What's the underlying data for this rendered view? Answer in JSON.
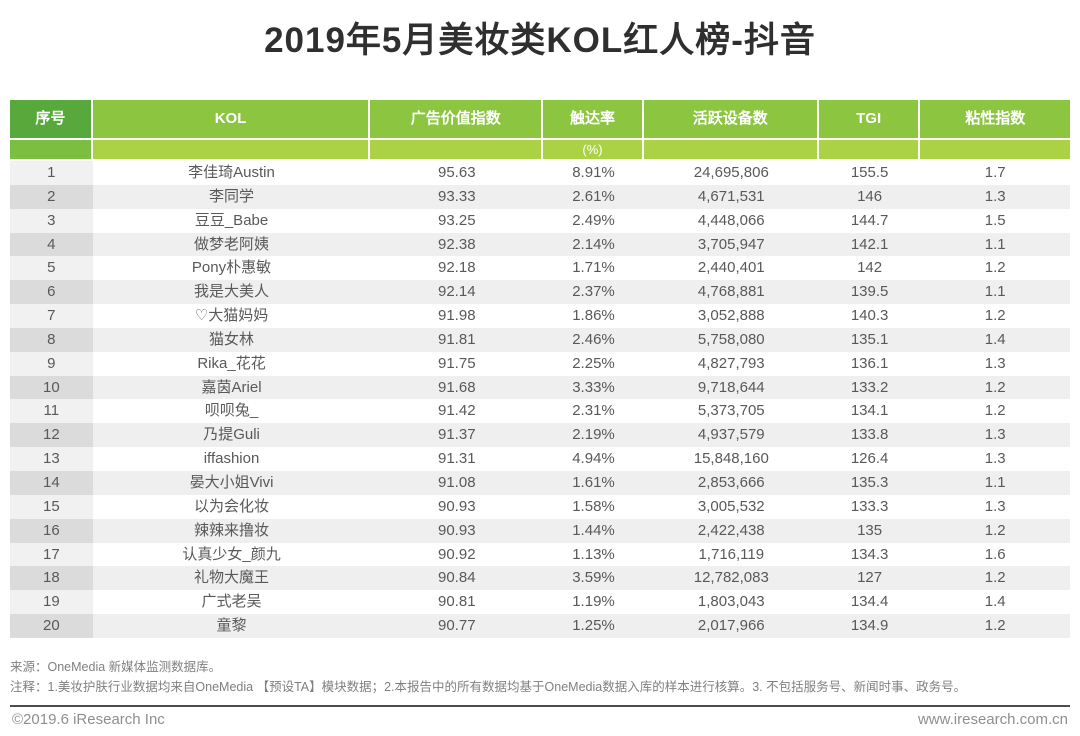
{
  "title": "2019年5月美妆类KOL红人榜-抖音",
  "colors": {
    "header_green_dark": "#57a93b",
    "header_green": "#8cc640",
    "subheader_green": "#abd144",
    "subheader_green_rank": "#7cbf40",
    "title_color": "#2f2f2f",
    "body_text": "#595959"
  },
  "chart_data": {
    "type": "table",
    "title": "2019年5月美妆类KOL红人榜-抖音",
    "columns": [
      {
        "key": "rank",
        "label": "序号",
        "unit": ""
      },
      {
        "key": "kol",
        "label": "KOL",
        "unit": ""
      },
      {
        "key": "ad-value-index",
        "label": "广告价值指数",
        "unit": ""
      },
      {
        "key": "reach-rate",
        "label": "触达率",
        "unit": "(%)"
      },
      {
        "key": "active-devices",
        "label": "活跃设备数",
        "unit": ""
      },
      {
        "key": "tgi",
        "label": "TGI",
        "unit": ""
      },
      {
        "key": "stickiness-index",
        "label": "粘性指数",
        "unit": ""
      }
    ],
    "rows": [
      [
        "1",
        "李佳琦Austin",
        "95.63",
        "8.91%",
        "24,695,806",
        "155.5",
        "1.7"
      ],
      [
        "2",
        "李同学",
        "93.33",
        "2.61%",
        "4,671,531",
        "146",
        "1.3"
      ],
      [
        "3",
        "豆豆_Babe",
        "93.25",
        "2.49%",
        "4,448,066",
        "144.7",
        "1.5"
      ],
      [
        "4",
        "做梦老阿姨",
        "92.38",
        "2.14%",
        "3,705,947",
        "142.1",
        "1.1"
      ],
      [
        "5",
        "Pony朴惠敏",
        "92.18",
        "1.71%",
        "2,440,401",
        "142",
        "1.2"
      ],
      [
        "6",
        "我是大美人",
        "92.14",
        "2.37%",
        "4,768,881",
        "139.5",
        "1.1"
      ],
      [
        "7",
        "♡大猫妈妈",
        "91.98",
        "1.86%",
        "3,052,888",
        "140.3",
        "1.2"
      ],
      [
        "8",
        "猫女林",
        "91.81",
        "2.46%",
        "5,758,080",
        "135.1",
        "1.4"
      ],
      [
        "9",
        "Rika_花花",
        "91.75",
        "2.25%",
        "4,827,793",
        "136.1",
        "1.3"
      ],
      [
        "10",
        "嘉茵Ariel",
        "91.68",
        "3.33%",
        "9,718,644",
        "133.2",
        "1.2"
      ],
      [
        "11",
        "呗呗兔_",
        "91.42",
        "2.31%",
        "5,373,705",
        "134.1",
        "1.2"
      ],
      [
        "12",
        "乃提Guli",
        "91.37",
        "2.19%",
        "4,937,579",
        "133.8",
        "1.3"
      ],
      [
        "13",
        "iffashion",
        "91.31",
        "4.94%",
        "15,848,160",
        "126.4",
        "1.3"
      ],
      [
        "14",
        "晏大小姐Vivi",
        "91.08",
        "1.61%",
        "2,853,666",
        "135.3",
        "1.1"
      ],
      [
        "15",
        "以为会化妆",
        "90.93",
        "1.58%",
        "3,005,532",
        "133.3",
        "1.3"
      ],
      [
        "16",
        "辣辣来撸妆",
        "90.93",
        "1.44%",
        "2,422,438",
        "135",
        "1.2"
      ],
      [
        "17",
        "认真少女_颜九",
        "90.92",
        "1.13%",
        "1,716,119",
        "134.3",
        "1.6"
      ],
      [
        "18",
        "礼物大魔王",
        "90.84",
        "3.59%",
        "12,782,083",
        "127",
        "1.2"
      ],
      [
        "19",
        "广式老吴",
        "90.81",
        "1.19%",
        "1,803,043",
        "134.4",
        "1.4"
      ],
      [
        "20",
        "童黎",
        "90.77",
        "1.25%",
        "2,017,966",
        "134.9",
        "1.2"
      ]
    ]
  },
  "footnotes": {
    "source": "来源：OneMedia 新媒体监测数据库。",
    "notes": "注释：1.美妆护肤行业数据均来自OneMedia 【预设TA】模块数据；2.本报告中的所有数据均基于OneMedia数据入库的样本进行核算。3. 不包括服务号、新闻时事、政务号。"
  },
  "footer": {
    "copyright": "©2019.6 iResearch Inc",
    "website": "www.iresearch.com.cn"
  }
}
